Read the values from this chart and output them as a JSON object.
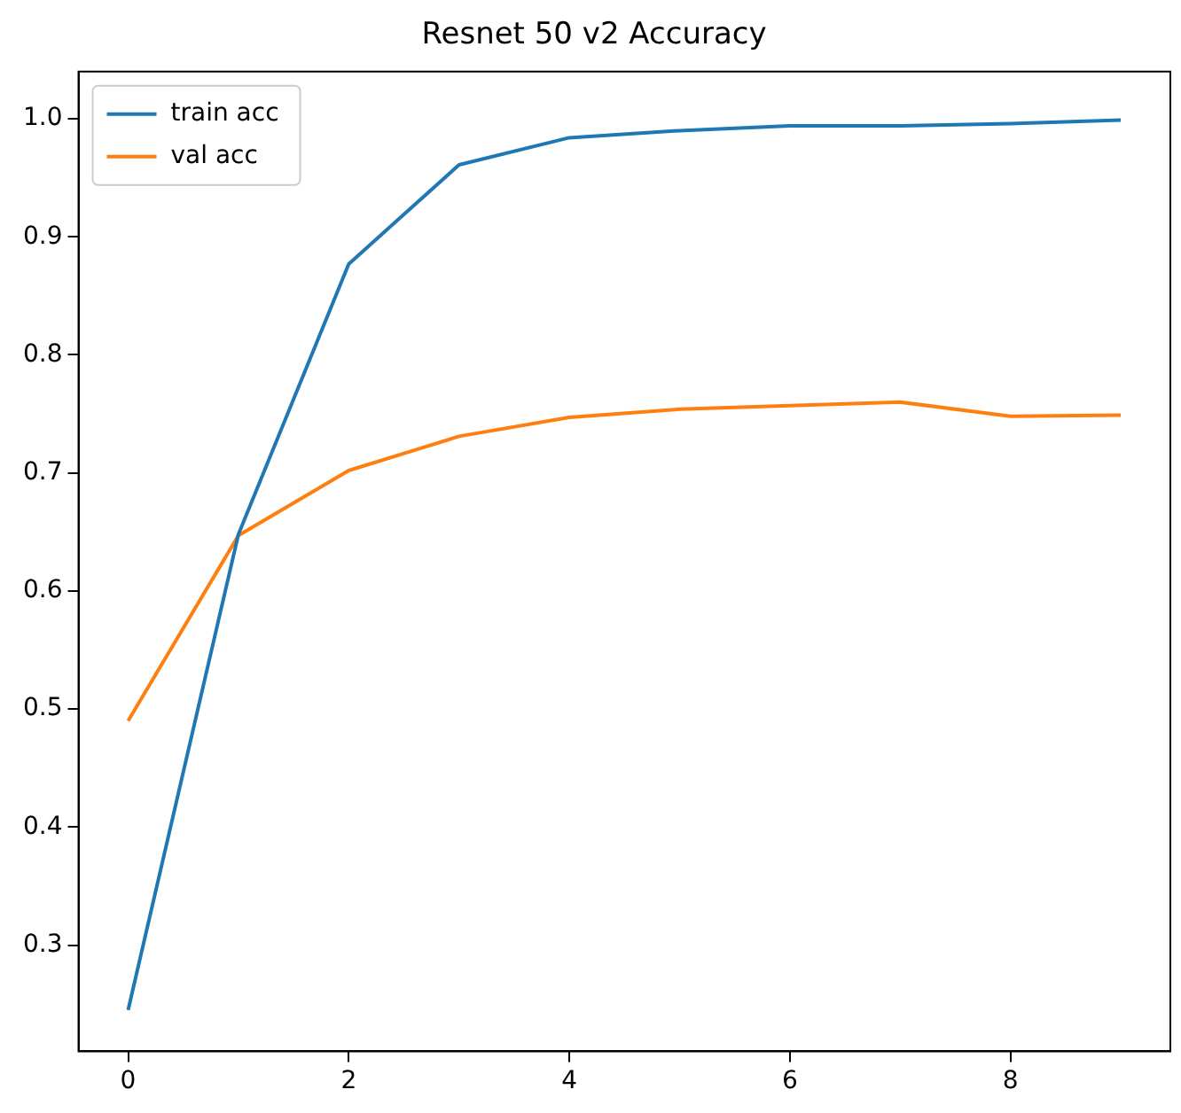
{
  "chart_data": {
    "type": "line",
    "title": "Resnet 50 v2 Accuracy",
    "x": [
      0,
      1,
      2,
      3,
      4,
      5,
      6,
      7,
      8,
      9
    ],
    "series": [
      {
        "name": "train acc",
        "color": "#1f77b4",
        "values": [
          0.245,
          0.648,
          0.877,
          0.961,
          0.984,
          0.99,
          0.994,
          0.994,
          0.996,
          0.999
        ]
      },
      {
        "name": "val acc",
        "color": "#ff7f0e",
        "values": [
          0.49,
          0.647,
          0.702,
          0.731,
          0.747,
          0.754,
          0.757,
          0.76,
          0.748,
          0.749
        ]
      }
    ],
    "xlim": [
      -0.45,
      9.45
    ],
    "xticks": [
      0,
      2,
      4,
      6,
      8
    ],
    "ylim": [
      0.21,
      1.04
    ],
    "yticks": [
      0.3,
      0.4,
      0.5,
      0.6,
      0.7,
      0.8,
      0.9,
      {
        "value": 1,
        "label": "1.0"
      }
    ],
    "grid": false,
    "legend": "top left",
    "marker": "none",
    "line_style": "solid"
  }
}
